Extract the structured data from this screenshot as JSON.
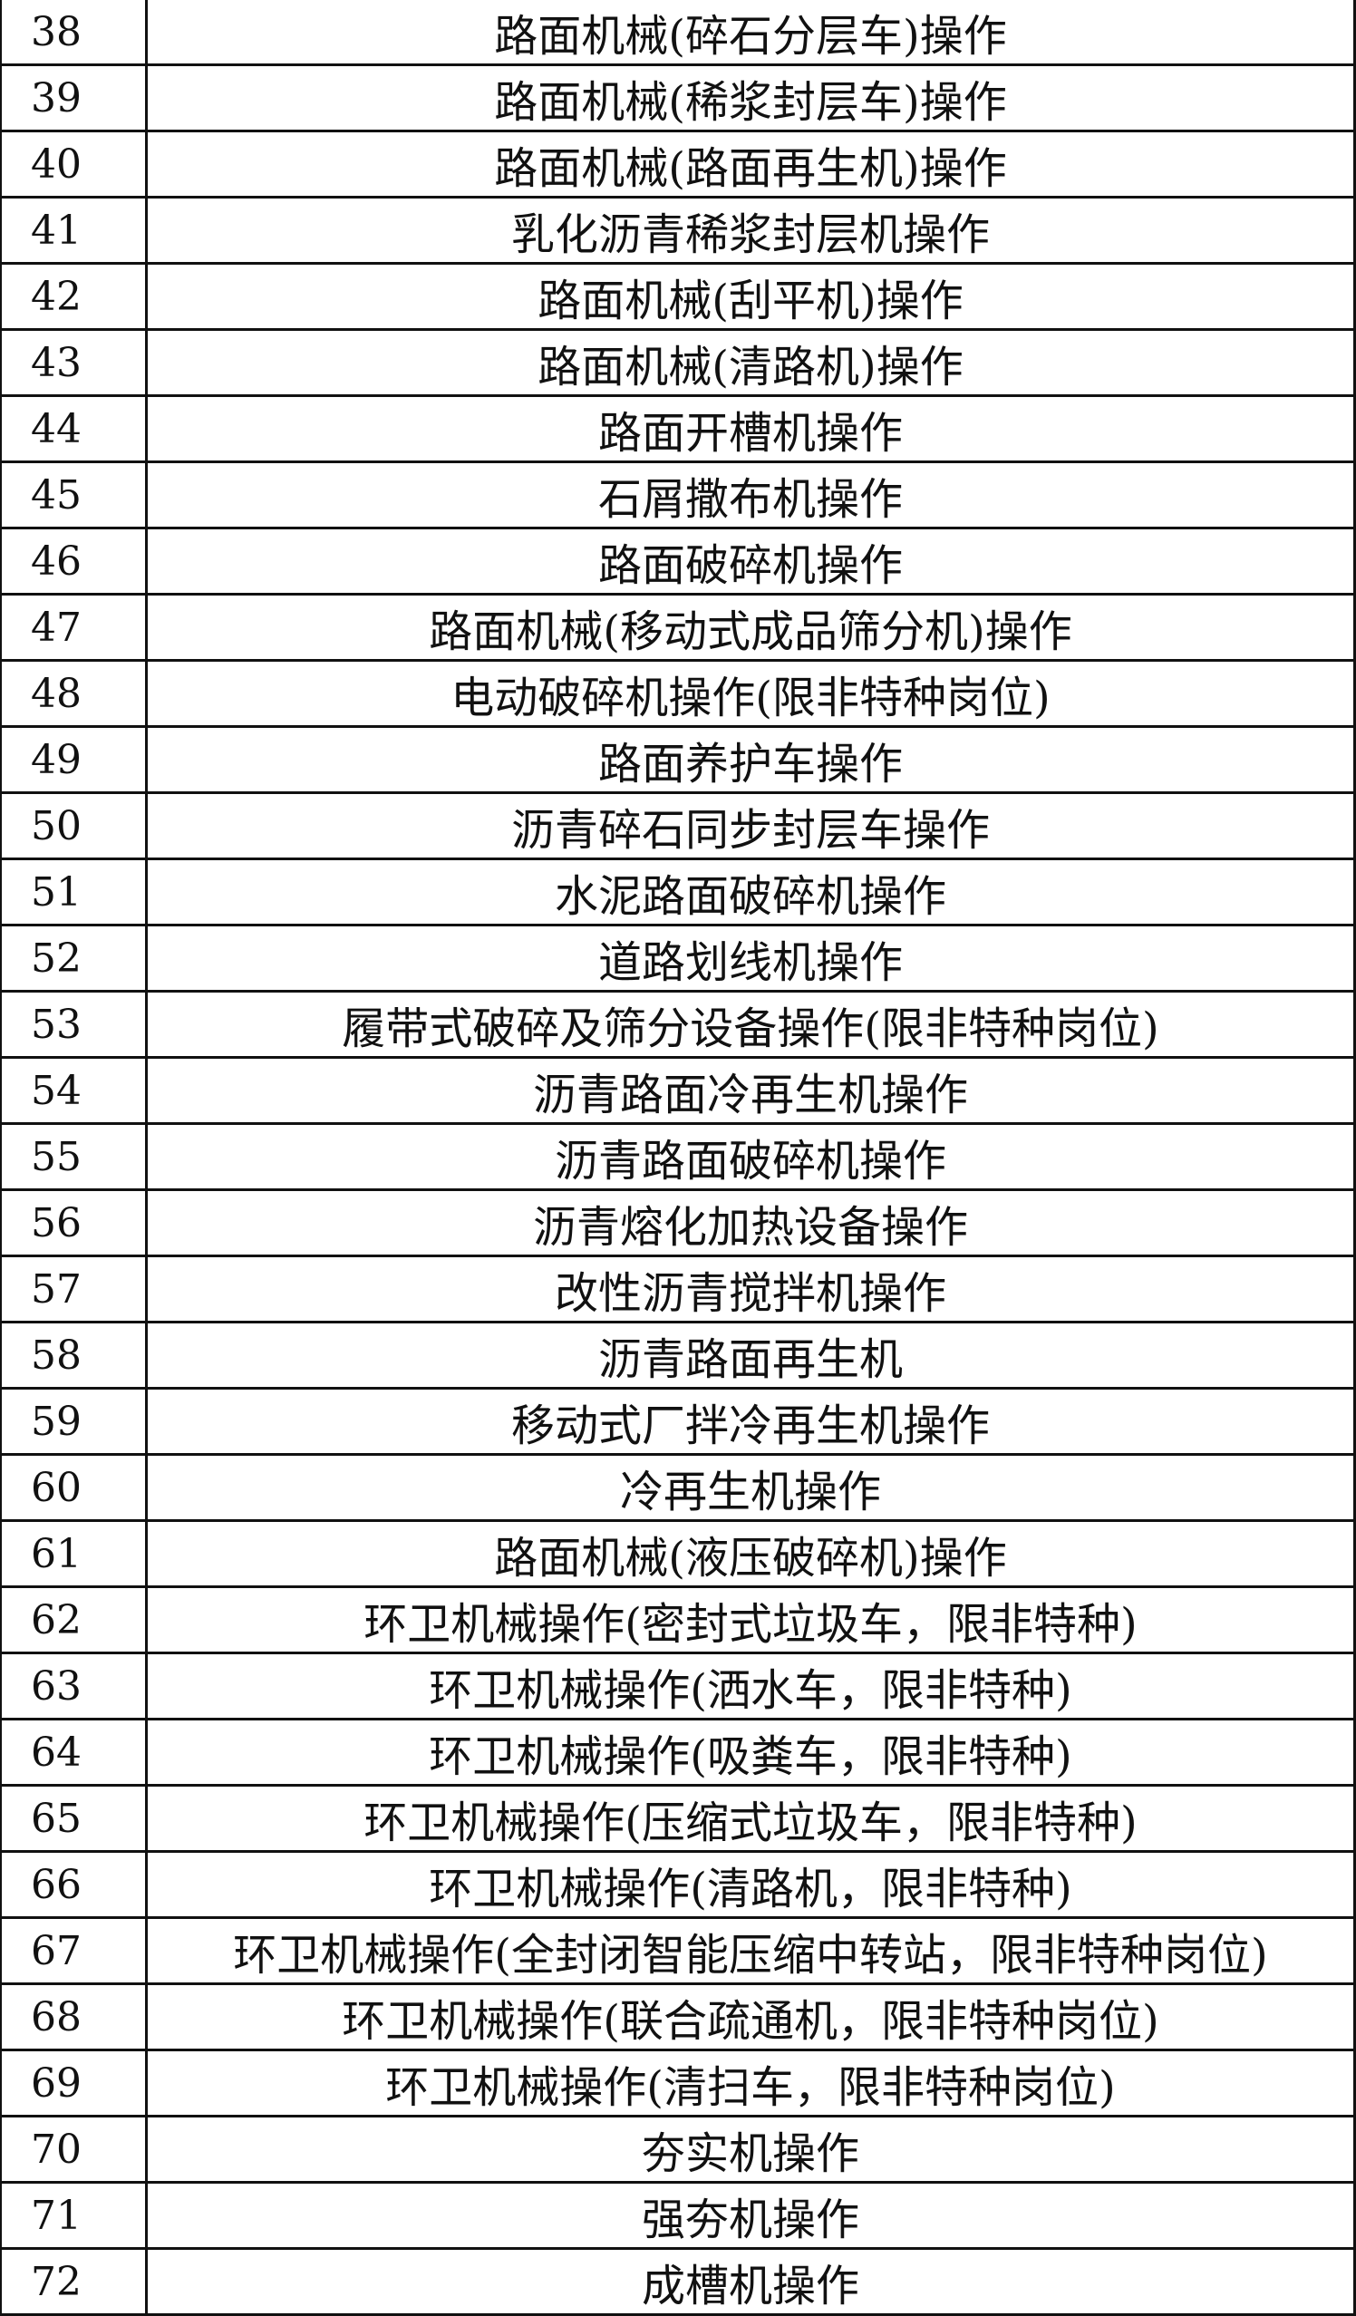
{
  "rows": [
    {
      "no": "38",
      "name": "路面机械(碎石分层车)操作"
    },
    {
      "no": "39",
      "name": "路面机械(稀浆封层车)操作"
    },
    {
      "no": "40",
      "name": "路面机械(路面再生机)操作"
    },
    {
      "no": "41",
      "name": "乳化沥青稀浆封层机操作"
    },
    {
      "no": "42",
      "name": "路面机械(刮平机)操作"
    },
    {
      "no": "43",
      "name": "路面机械(清路机)操作"
    },
    {
      "no": "44",
      "name": "路面开槽机操作"
    },
    {
      "no": "45",
      "name": "石屑撒布机操作"
    },
    {
      "no": "46",
      "name": "路面破碎机操作"
    },
    {
      "no": "47",
      "name": "路面机械(移动式成品筛分机)操作"
    },
    {
      "no": "48",
      "name": "电动破碎机操作(限非特种岗位)"
    },
    {
      "no": "49",
      "name": "路面养护车操作"
    },
    {
      "no": "50",
      "name": "沥青碎石同步封层车操作"
    },
    {
      "no": "51",
      "name": "水泥路面破碎机操作"
    },
    {
      "no": "52",
      "name": "道路划线机操作"
    },
    {
      "no": "53",
      "name": "履带式破碎及筛分设备操作(限非特种岗位)"
    },
    {
      "no": "54",
      "name": "沥青路面冷再生机操作"
    },
    {
      "no": "55",
      "name": "沥青路面破碎机操作"
    },
    {
      "no": "56",
      "name": "沥青熔化加热设备操作"
    },
    {
      "no": "57",
      "name": "改性沥青搅拌机操作"
    },
    {
      "no": "58",
      "name": "沥青路面再生机"
    },
    {
      "no": "59",
      "name": "移动式厂拌冷再生机操作"
    },
    {
      "no": "60",
      "name": "冷再生机操作"
    },
    {
      "no": "61",
      "name": "路面机械(液压破碎机)操作"
    },
    {
      "no": "62",
      "name": "环卫机械操作(密封式垃圾车，限非特种)"
    },
    {
      "no": "63",
      "name": "环卫机械操作(洒水车，限非特种)"
    },
    {
      "no": "64",
      "name": "环卫机械操作(吸粪车，限非特种)"
    },
    {
      "no": "65",
      "name": "环卫机械操作(压缩式垃圾车，限非特种)"
    },
    {
      "no": "66",
      "name": "环卫机械操作(清路机，限非特种)"
    },
    {
      "no": "67",
      "name": "环卫机械操作(全封闭智能压缩中转站，限非特种岗位)"
    },
    {
      "no": "68",
      "name": "环卫机械操作(联合疏通机，限非特种岗位)"
    },
    {
      "no": "69",
      "name": "环卫机械操作(清扫车，限非特种岗位)"
    },
    {
      "no": "70",
      "name": "夯实机操作"
    },
    {
      "no": "71",
      "name": "强夯机操作"
    },
    {
      "no": "72",
      "name": "成槽机操作"
    }
  ]
}
